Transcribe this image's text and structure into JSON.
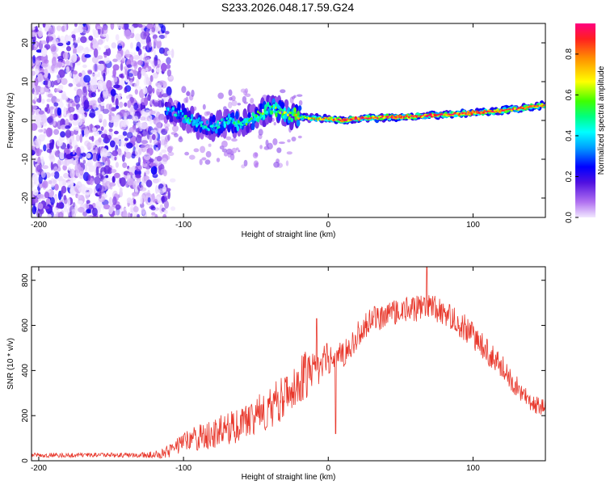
{
  "title": "S233.2026.048.17.59.G24",
  "colors": {
    "snr_line": "#e8382c",
    "axis": "#000000"
  },
  "chart_data": [
    {
      "type": "heatmap",
      "name": "spectrogram",
      "xlabel": "Height of straight line (km)",
      "ylabel": "Frequency (Hz)",
      "xlim": [
        -205,
        150
      ],
      "ylim": [
        -25,
        25
      ],
      "xticks": [
        -200,
        -100,
        0,
        100
      ],
      "xtick_labels": [
        "-200",
        "-100",
        "0",
        "100"
      ],
      "yticks": [
        -20,
        -10,
        0,
        10,
        20
      ],
      "ytick_labels": [
        "-20",
        "-10",
        "0",
        "10",
        "20"
      ],
      "noise_region_x": [
        -205,
        -112
      ],
      "signal_track": {
        "x": [
          -112,
          -105,
          -98,
          -90,
          -80,
          -70,
          -60,
          -50,
          -40,
          -30,
          -20,
          -10,
          0,
          10,
          20,
          40,
          60,
          80,
          100,
          120,
          140,
          150
        ],
        "freq": [
          3,
          2,
          1,
          -1,
          -2,
          0,
          -1,
          1,
          3,
          2,
          1,
          0.5,
          0.5,
          0,
          0.5,
          0.8,
          1,
          1.5,
          2,
          2.5,
          3.5,
          4
        ],
        "amplitude": [
          0.35,
          0.4,
          0.45,
          0.45,
          0.4,
          0.45,
          0.5,
          0.5,
          0.55,
          0.6,
          0.65,
          0.75,
          0.85,
          0.9,
          0.95,
          0.95,
          0.95,
          0.95,
          0.95,
          0.95,
          0.9,
          0.9
        ]
      },
      "colorbar": {
        "label": "Normalized spectral amplitude",
        "range": [
          0,
          0.95
        ],
        "ticks": [
          0,
          0.2,
          0.4,
          0.6,
          0.8
        ],
        "tick_labels": [
          "0.0",
          "0.2",
          "0.4",
          "0.6",
          "0.8"
        ]
      }
    },
    {
      "type": "line",
      "name": "snr",
      "xlabel": "Height of straight line (km)",
      "ylabel": "SNR (10 * v/v)",
      "xlim": [
        -205,
        150
      ],
      "ylim": [
        0,
        860
      ],
      "xticks": [
        -200,
        -100,
        0,
        100
      ],
      "xtick_labels": [
        "-200",
        "-100",
        "0",
        "100"
      ],
      "yticks": [
        0,
        200,
        400,
        600,
        800
      ],
      "ytick_labels": [
        "0",
        "200",
        "400",
        "600",
        "800"
      ],
      "series": [
        {
          "name": "SNR",
          "x": [
            -205,
            -190,
            -170,
            -150,
            -130,
            -115,
            -105,
            -95,
            -85,
            -75,
            -65,
            -55,
            -45,
            -35,
            -25,
            -15,
            -8,
            -3,
            0,
            5,
            10,
            15,
            20,
            30,
            40,
            50,
            60,
            70,
            80,
            90,
            100,
            110,
            120,
            130,
            140,
            150
          ],
          "y": [
            25,
            25,
            25,
            25,
            25,
            30,
            60,
            90,
            110,
            130,
            150,
            180,
            220,
            260,
            320,
            380,
            410,
            430,
            450,
            460,
            470,
            500,
            560,
            620,
            650,
            660,
            670,
            690,
            650,
            610,
            560,
            480,
            420,
            330,
            260,
            230
          ],
          "noise_amplitude": [
            10,
            10,
            10,
            10,
            10,
            20,
            40,
            55,
            65,
            70,
            75,
            80,
            90,
            100,
            110,
            110,
            90,
            80,
            70,
            60,
            60,
            60,
            60,
            60,
            60,
            60,
            60,
            60,
            60,
            60,
            60,
            60,
            50,
            50,
            40,
            40
          ],
          "spikes": [
            {
              "x": -8,
              "y": 630
            },
            {
              "x": -1,
              "y": 520
            },
            {
              "x": 5,
              "y": 120
            },
            {
              "x": 68,
              "y": 860
            }
          ]
        }
      ]
    }
  ]
}
